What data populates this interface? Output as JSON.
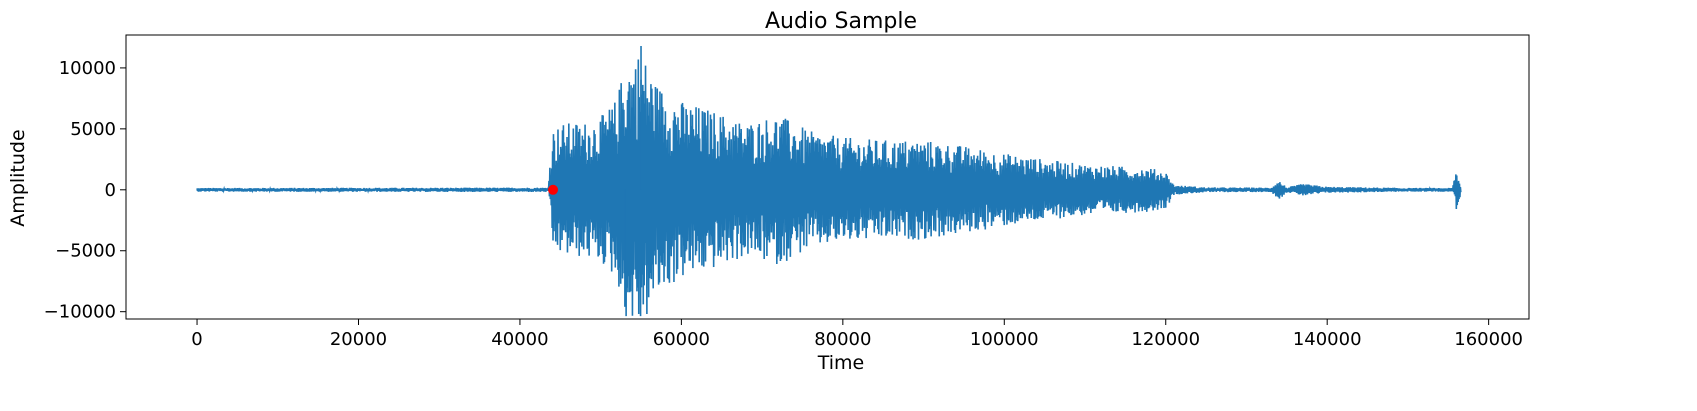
{
  "chart_data": {
    "type": "line",
    "title": "Audio Sample",
    "xlabel": "Time",
    "ylabel": "Amplitude",
    "xlim": [
      -8800,
      165000
    ],
    "ylim": [
      -10600,
      12700
    ],
    "x_ticks": [
      0,
      20000,
      40000,
      60000,
      80000,
      100000,
      120000,
      140000,
      160000
    ],
    "x_tick_labels": [
      "0",
      "20000",
      "40000",
      "60000",
      "80000",
      "100000",
      "120000",
      "140000",
      "160000"
    ],
    "y_ticks": [
      -10000,
      -5000,
      0,
      5000,
      10000
    ],
    "y_tick_labels": [
      "−10000",
      "−5000",
      "0",
      "5000",
      "10000"
    ],
    "grid": false,
    "series": [
      {
        "color": "#1f77b4",
        "length": 156500,
        "onset": 44000,
        "peak_max": 11800,
        "peak_min": -9600,
        "envelope": [
          [
            0,
            150
          ],
          [
            43500,
            180
          ],
          [
            44000,
            5000
          ],
          [
            45500,
            5500
          ],
          [
            48000,
            5600
          ],
          [
            50000,
            6000
          ],
          [
            52000,
            7500
          ],
          [
            53000,
            10500
          ],
          [
            55000,
            11500
          ],
          [
            57000,
            8700
          ],
          [
            60000,
            7300
          ],
          [
            64000,
            6500
          ],
          [
            68000,
            5500
          ],
          [
            72000,
            6200
          ],
          [
            76000,
            4800
          ],
          [
            80000,
            4300
          ],
          [
            85000,
            4100
          ],
          [
            90000,
            4100
          ],
          [
            95000,
            3600
          ],
          [
            100000,
            3000
          ],
          [
            105000,
            2500
          ],
          [
            110000,
            2100
          ],
          [
            115000,
            1900
          ],
          [
            118000,
            1800
          ],
          [
            120000,
            1500
          ],
          [
            121000,
            400
          ],
          [
            125000,
            200
          ],
          [
            133000,
            180
          ],
          [
            134000,
            800
          ],
          [
            135000,
            200
          ],
          [
            137000,
            500
          ],
          [
            140000,
            250
          ],
          [
            150000,
            150
          ],
          [
            155500,
            150
          ],
          [
            156000,
            1800
          ],
          [
            156500,
            300
          ]
        ]
      },
      {
        "type": "scatter",
        "color": "#ff0000",
        "points": [
          [
            44100,
            0
          ]
        ]
      }
    ]
  }
}
